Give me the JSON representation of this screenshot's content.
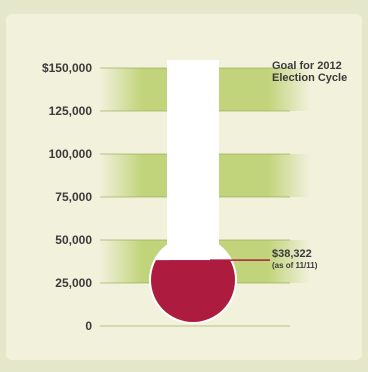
{
  "chart_data": {
    "type": "thermometer",
    "title": "",
    "ylim": [
      0,
      150000
    ],
    "ticks": [
      {
        "value": 0,
        "label": "0"
      },
      {
        "value": 25000,
        "label": "25,000"
      },
      {
        "value": 50000,
        "label": "50,000"
      },
      {
        "value": 75000,
        "label": "75,000"
      },
      {
        "value": 100000,
        "label": "100,000"
      },
      {
        "value": 125000,
        "label": "125,000"
      },
      {
        "value": 150000,
        "label": "$150,000"
      }
    ],
    "goal": {
      "value": 150000,
      "line1": "Goal for 2012",
      "line2": "Election Cycle"
    },
    "current": {
      "value": 38322,
      "label": "$38,322",
      "sublabel": "(as of 11/11)"
    },
    "colors": {
      "fill": "#ad1c3f",
      "band": "#b9cf6a",
      "tube": "#ffffff"
    }
  }
}
